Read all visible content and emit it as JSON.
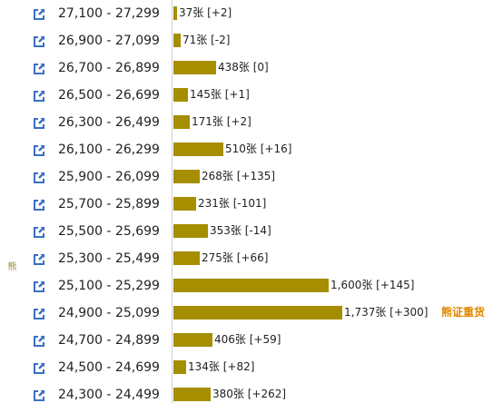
{
  "chart_data": {
    "type": "bar",
    "orientation": "horizontal",
    "side_label": "熊",
    "value_unit": "张",
    "categories": [
      "27,100 - 27,299",
      "26,900 - 27,099",
      "26,700 - 26,899",
      "26,500 - 26,699",
      "26,300 - 26,499",
      "26,100 - 26,299",
      "25,900 - 26,099",
      "25,700 - 25,899",
      "25,500 - 25,699",
      "25,300 - 25,499",
      "25,100 - 25,299",
      "24,900 - 25,099",
      "24,700 - 24,899",
      "24,500 - 24,699",
      "24,300 - 24,499"
    ],
    "values": [
      37,
      71,
      438,
      145,
      171,
      510,
      268,
      231,
      353,
      275,
      1600,
      1737,
      406,
      134,
      380
    ],
    "value_labels": [
      "37张 [+2]",
      "71张 [-2]",
      "438张 [0]",
      "145张 [+1]",
      "171张 [+2]",
      "510张 [+16]",
      "268张 [+135]",
      "231张 [-101]",
      "353张 [-14]",
      "275张 [+66]",
      "1,600张 [+145]",
      "1,737张 [+300]",
      "406张 [+59]",
      "134张 [+82]",
      "380张 [+262]"
    ],
    "annotation": {
      "text": "熊证重货",
      "category": "24,900 - 25,099"
    },
    "xlim": [
      0,
      1737
    ],
    "grid": false,
    "legend": "none",
    "colors": {
      "bar": "#a58e00",
      "icon": "#3a6fc4",
      "annotation": "#e08a00",
      "side_label": "#9a8a2e"
    }
  }
}
